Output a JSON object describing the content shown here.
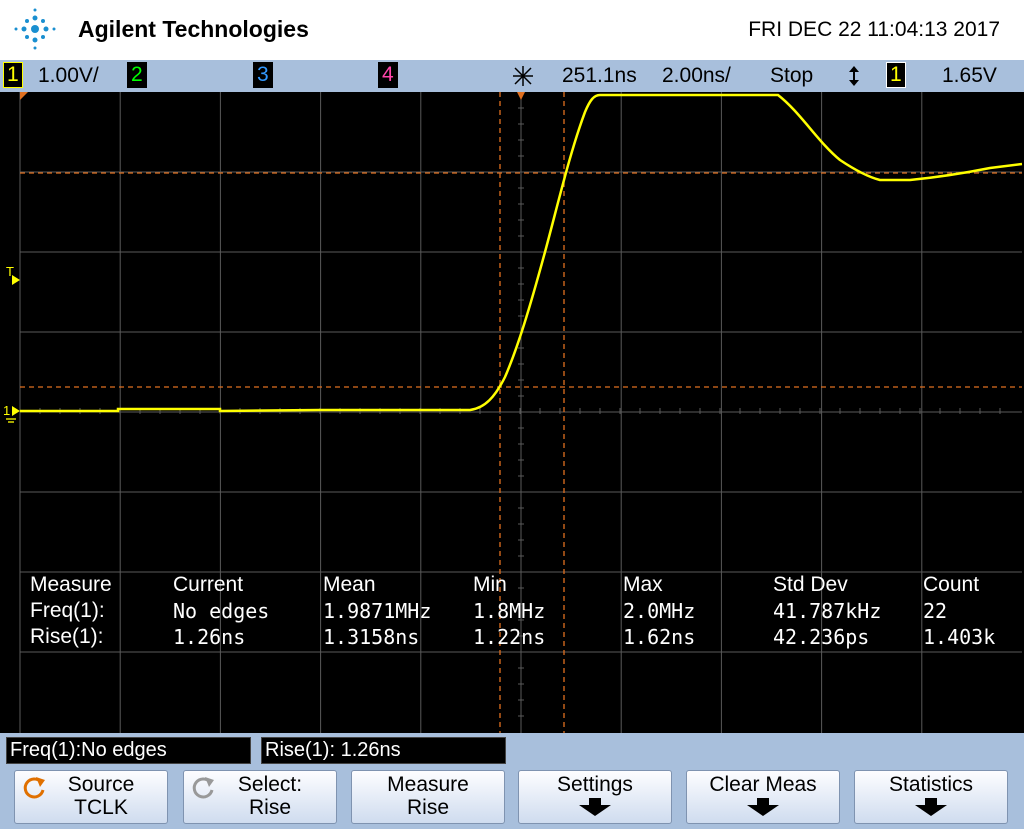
{
  "header": {
    "brand": "Agilent Technologies",
    "datetime": "FRI DEC 22 11:04:13 2017"
  },
  "status": {
    "ch1": "1",
    "ch1_scale": "1.00V/",
    "ch2": "2",
    "ch3": "3",
    "ch4": "4",
    "time_delay": "251.1ns",
    "time_scale": "2.00ns/",
    "run_state": "Stop",
    "trigger_source": "1",
    "trigger_level": "1.65V"
  },
  "screen": {
    "trigger_marker": "T",
    "ground_marker": "1"
  },
  "measurements": {
    "columns": [
      "Measure",
      "Current",
      "Mean",
      "Min",
      "Max",
      "Std Dev",
      "Count"
    ],
    "rows": [
      [
        "Freq(1):",
        "No edges",
        "1.9871MHz",
        "1.8MHz",
        "2.0MHz",
        "41.787kHz",
        "22"
      ],
      [
        "Rise(1):",
        "1.26ns",
        "1.3158ns",
        "1.22ns",
        "1.62ns",
        "42.236ps",
        "1.403k"
      ]
    ]
  },
  "readouts": [
    "Freq(1):No edges",
    "Rise(1): 1.26ns"
  ],
  "softkeys": [
    {
      "line1": "Source",
      "line2": "TCLK"
    },
    {
      "line1": "Select:",
      "line2": "Rise"
    },
    {
      "line1": "Measure",
      "line2": "Rise"
    },
    {
      "line1": "Settings"
    },
    {
      "line1": "Clear Meas"
    },
    {
      "line1": "Statistics"
    }
  ]
}
